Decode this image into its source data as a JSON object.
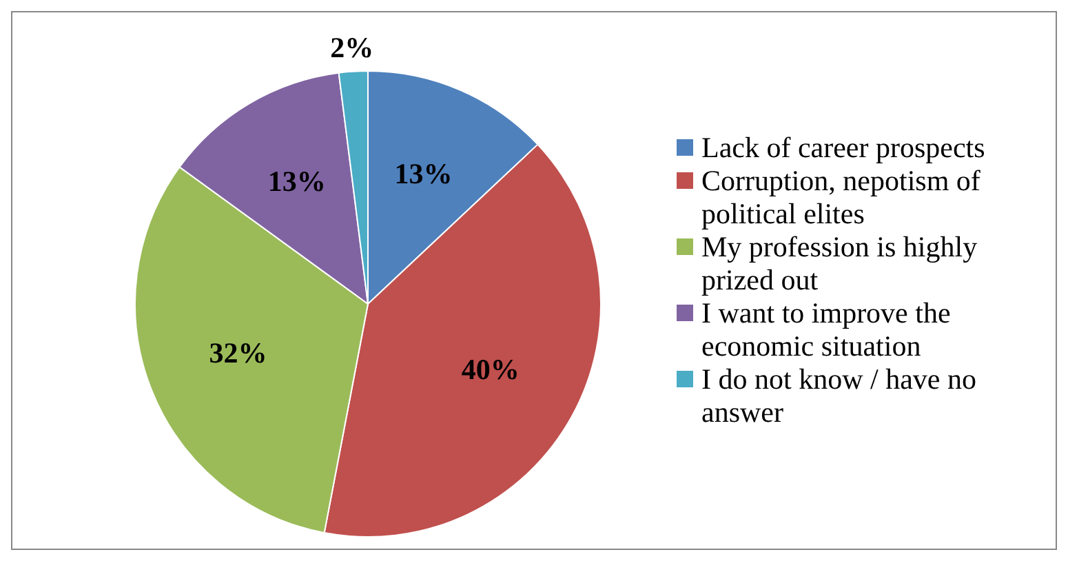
{
  "chart_data": {
    "type": "pie",
    "categories": [
      "Lack of career prospects",
      "Corruption, nepotism of political elites",
      "My profession is highly prized out",
      "I want to improve the economic situation",
      "I do not know / have no answer"
    ],
    "values": [
      13,
      40,
      32,
      13,
      2
    ],
    "colors": [
      "#4f81bd",
      "#c0504d",
      "#9bbb59",
      "#8064a2",
      "#4bacc6"
    ],
    "value_labels": [
      "13%",
      "40%",
      "32%",
      "13%",
      "2%"
    ],
    "legend": "right"
  }
}
